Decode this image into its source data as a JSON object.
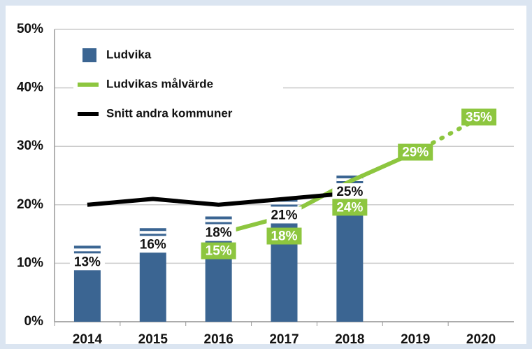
{
  "chart_data": {
    "type": "bar_line",
    "categories": [
      "2014",
      "2015",
      "2016",
      "2017",
      "2018",
      "2019",
      "2020"
    ],
    "series": [
      {
        "name": "Ludvika",
        "kind": "bar",
        "color": "#3b6592",
        "values": [
          13,
          16,
          18,
          21,
          25,
          null,
          null
        ],
        "value_labels": [
          "13%",
          "16%",
          "18%",
          "21%",
          "25%",
          null,
          null
        ]
      },
      {
        "name": "Ludvikas målvärde",
        "kind": "line",
        "color": "#8dc63f",
        "values": [
          null,
          null,
          15,
          18,
          24,
          29,
          35
        ],
        "value_labels": [
          null,
          null,
          "15%",
          "18%",
          "24%",
          "29%",
          "35%"
        ],
        "dotted_from": "2019"
      },
      {
        "name": "Snitt andra kommuner",
        "kind": "line",
        "color": "#000000",
        "values": [
          20,
          21,
          20,
          21,
          22,
          null,
          null
        ]
      }
    ],
    "ylim": [
      0,
      50
    ],
    "yticks": [
      {
        "value": 0,
        "label": "0%"
      },
      {
        "value": 10,
        "label": "10%"
      },
      {
        "value": 20,
        "label": "20%"
      },
      {
        "value": 30,
        "label": "30%"
      },
      {
        "value": 40,
        "label": "40%"
      },
      {
        "value": 50,
        "label": "50%"
      }
    ],
    "grid": true,
    "legend": "upper left"
  }
}
